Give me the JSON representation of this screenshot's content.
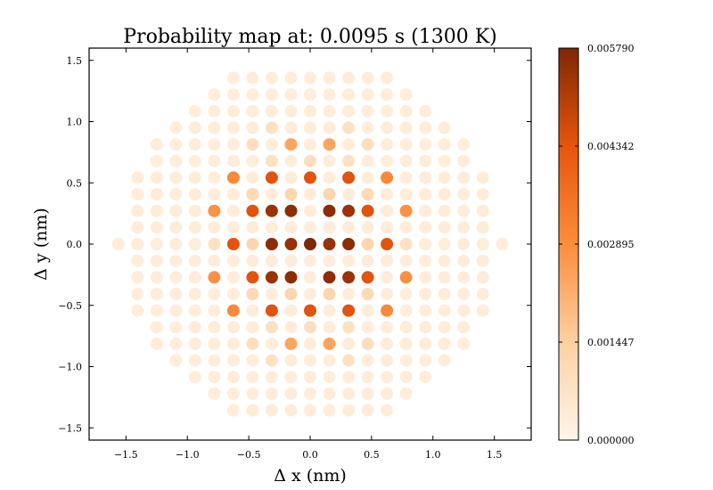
{
  "chart_data": {
    "type": "scatter",
    "title": "Probability map at: 0.0095 s (1300 K)",
    "xlabel": "Δ x (nm)",
    "ylabel": "Δ y (nm)",
    "xlim": [
      -1.8,
      1.8
    ],
    "ylim": [
      -1.6,
      1.6
    ],
    "x_ticks": [
      "−1.5",
      "−1.0",
      "−0.5",
      "0.0",
      "0.5",
      "1.0",
      "1.5"
    ],
    "y_ticks": [
      "−1.5",
      "−1.0",
      "−0.5",
      "0.0",
      "0.5",
      "1.0",
      "1.5"
    ],
    "lattice": {
      "description_of_values": "hexagonal lattice of sites; each point colored by probability",
      "a_nm": 0.3125,
      "row_spacing_nm": 0.0848,
      "max_radius_nm": 1.57
    },
    "points": [
      {
        "x": 0.0,
        "y": 0.0,
        "p": 0.00579
      },
      {
        "x": 0.156,
        "y": 0.0,
        "p": 0.00545
      },
      {
        "x": -0.156,
        "y": 0.0,
        "p": 0.00545
      },
      {
        "x": 0.078,
        "y": 0.136,
        "p": 0.00545
      },
      {
        "x": -0.078,
        "y": 0.136,
        "p": 0.00545
      },
      {
        "x": 0.078,
        "y": -0.136,
        "p": 0.00545
      },
      {
        "x": -0.078,
        "y": -0.136,
        "p": 0.00545
      },
      {
        "x": 0.0,
        "y": 0.187,
        "p": 0.0012
      },
      {
        "x": 0.0,
        "y": -0.187,
        "p": 0.0012
      },
      {
        "x": 0.156,
        "y": 0.27,
        "p": 0.0056
      },
      {
        "x": -0.156,
        "y": 0.27,
        "p": 0.0056
      },
      {
        "x": 0.156,
        "y": -0.27,
        "p": 0.0056
      },
      {
        "x": -0.156,
        "y": -0.27,
        "p": 0.0056
      },
      {
        "x": 0.312,
        "y": 0.0,
        "p": 0.0056
      },
      {
        "x": -0.312,
        "y": 0.0,
        "p": 0.0056
      },
      {
        "x": 0.312,
        "y": 0.27,
        "p": 0.0054
      },
      {
        "x": -0.312,
        "y": 0.27,
        "p": 0.0054
      },
      {
        "x": 0.312,
        "y": -0.27,
        "p": 0.0054
      },
      {
        "x": -0.312,
        "y": -0.27,
        "p": 0.0054
      },
      {
        "x": 0.234,
        "y": 0.135,
        "p": 0.0012
      },
      {
        "x": -0.234,
        "y": 0.135,
        "p": 0.0012
      },
      {
        "x": 0.234,
        "y": -0.135,
        "p": 0.0012
      },
      {
        "x": -0.234,
        "y": -0.135,
        "p": 0.0012
      },
      {
        "x": 0.0,
        "y": 0.5,
        "p": 0.0044
      },
      {
        "x": 0.0,
        "y": -0.5,
        "p": 0.0044
      },
      {
        "x": 0.312,
        "y": 0.5,
        "p": 0.0044
      },
      {
        "x": -0.312,
        "y": 0.5,
        "p": 0.0044
      },
      {
        "x": 0.312,
        "y": -0.5,
        "p": 0.0044
      },
      {
        "x": -0.312,
        "y": -0.5,
        "p": 0.0044
      },
      {
        "x": 0.469,
        "y": 0.27,
        "p": 0.0044
      },
      {
        "x": -0.469,
        "y": 0.27,
        "p": 0.0044
      },
      {
        "x": 0.469,
        "y": -0.27,
        "p": 0.0044
      },
      {
        "x": -0.469,
        "y": -0.27,
        "p": 0.0044
      },
      {
        "x": 0.625,
        "y": 0.0,
        "p": 0.0044
      },
      {
        "x": -0.625,
        "y": 0.0,
        "p": 0.0044
      },
      {
        "x": 0.156,
        "y": 0.45,
        "p": 0.0012
      },
      {
        "x": -0.156,
        "y": 0.45,
        "p": 0.0012
      },
      {
        "x": 0.156,
        "y": -0.45,
        "p": 0.0012
      },
      {
        "x": -0.156,
        "y": -0.45,
        "p": 0.0012
      },
      {
        "x": 0.469,
        "y": 0.45,
        "p": 0.0011
      },
      {
        "x": -0.469,
        "y": 0.45,
        "p": 0.0011
      },
      {
        "x": 0.469,
        "y": -0.45,
        "p": 0.0011
      },
      {
        "x": -0.469,
        "y": -0.45,
        "p": 0.0011
      },
      {
        "x": 0.625,
        "y": 0.2,
        "p": 0.0012
      },
      {
        "x": -0.625,
        "y": 0.2,
        "p": 0.0012
      },
      {
        "x": 0.625,
        "y": -0.2,
        "p": 0.0012
      },
      {
        "x": -0.625,
        "y": -0.2,
        "p": 0.0012
      },
      {
        "x": 0.469,
        "y": 0.0,
        "p": 0.0012
      },
      {
        "x": -0.469,
        "y": 0.0,
        "p": 0.0012
      },
      {
        "x": 0.625,
        "y": 0.5,
        "p": 0.003
      },
      {
        "x": -0.625,
        "y": 0.5,
        "p": 0.003
      },
      {
        "x": 0.625,
        "y": -0.5,
        "p": 0.003
      },
      {
        "x": -0.625,
        "y": -0.5,
        "p": 0.003
      },
      {
        "x": 0.781,
        "y": 0.27,
        "p": 0.0028
      },
      {
        "x": -0.781,
        "y": 0.27,
        "p": 0.0028
      },
      {
        "x": 0.781,
        "y": -0.27,
        "p": 0.0028
      },
      {
        "x": -0.781,
        "y": -0.27,
        "p": 0.0028
      },
      {
        "x": 0.156,
        "y": 0.8,
        "p": 0.0024
      },
      {
        "x": -0.156,
        "y": 0.8,
        "p": 0.0024
      },
      {
        "x": 0.156,
        "y": -0.8,
        "p": 0.0024
      },
      {
        "x": -0.156,
        "y": -0.8,
        "p": 0.0024
      },
      {
        "x": 0.469,
        "y": 0.8,
        "p": 0.0009
      },
      {
        "x": -0.469,
        "y": 0.8,
        "p": 0.0009
      },
      {
        "x": 0.469,
        "y": -0.8,
        "p": 0.0009
      },
      {
        "x": -0.469,
        "y": -0.8,
        "p": 0.0009
      },
      {
        "x": 0.0,
        "y": 0.72,
        "p": 0.0009
      },
      {
        "x": 0.0,
        "y": -0.72,
        "p": 0.0009
      },
      {
        "x": 0.312,
        "y": 0.72,
        "p": 0.0008
      },
      {
        "x": -0.312,
        "y": 0.72,
        "p": 0.0008
      },
      {
        "x": 0.312,
        "y": -0.72,
        "p": 0.0008
      },
      {
        "x": -0.312,
        "y": -0.72,
        "p": 0.0008
      },
      {
        "x": 0.781,
        "y": 0.0,
        "p": 0.0008
      },
      {
        "x": -0.781,
        "y": 0.0,
        "p": 0.0008
      },
      {
        "x": 0.312,
        "y": 0.95,
        "p": 0.0008
      },
      {
        "x": -0.312,
        "y": 0.95,
        "p": 0.0008
      },
      {
        "x": 0.312,
        "y": -0.95,
        "p": 0.0008
      },
      {
        "x": -0.312,
        "y": -0.95,
        "p": 0.0008
      }
    ],
    "background_p": 0.00035,
    "colorbar": {
      "min": 0.0,
      "max": 0.00579,
      "tick_labels": [
        "0.000000",
        "0.001447",
        "0.002895",
        "0.004342",
        "0.005790"
      ],
      "colors": [
        "#fff5eb",
        "#fdd0a2",
        "#fd8d3c",
        "#e6550d",
        "#7f2704"
      ]
    }
  }
}
